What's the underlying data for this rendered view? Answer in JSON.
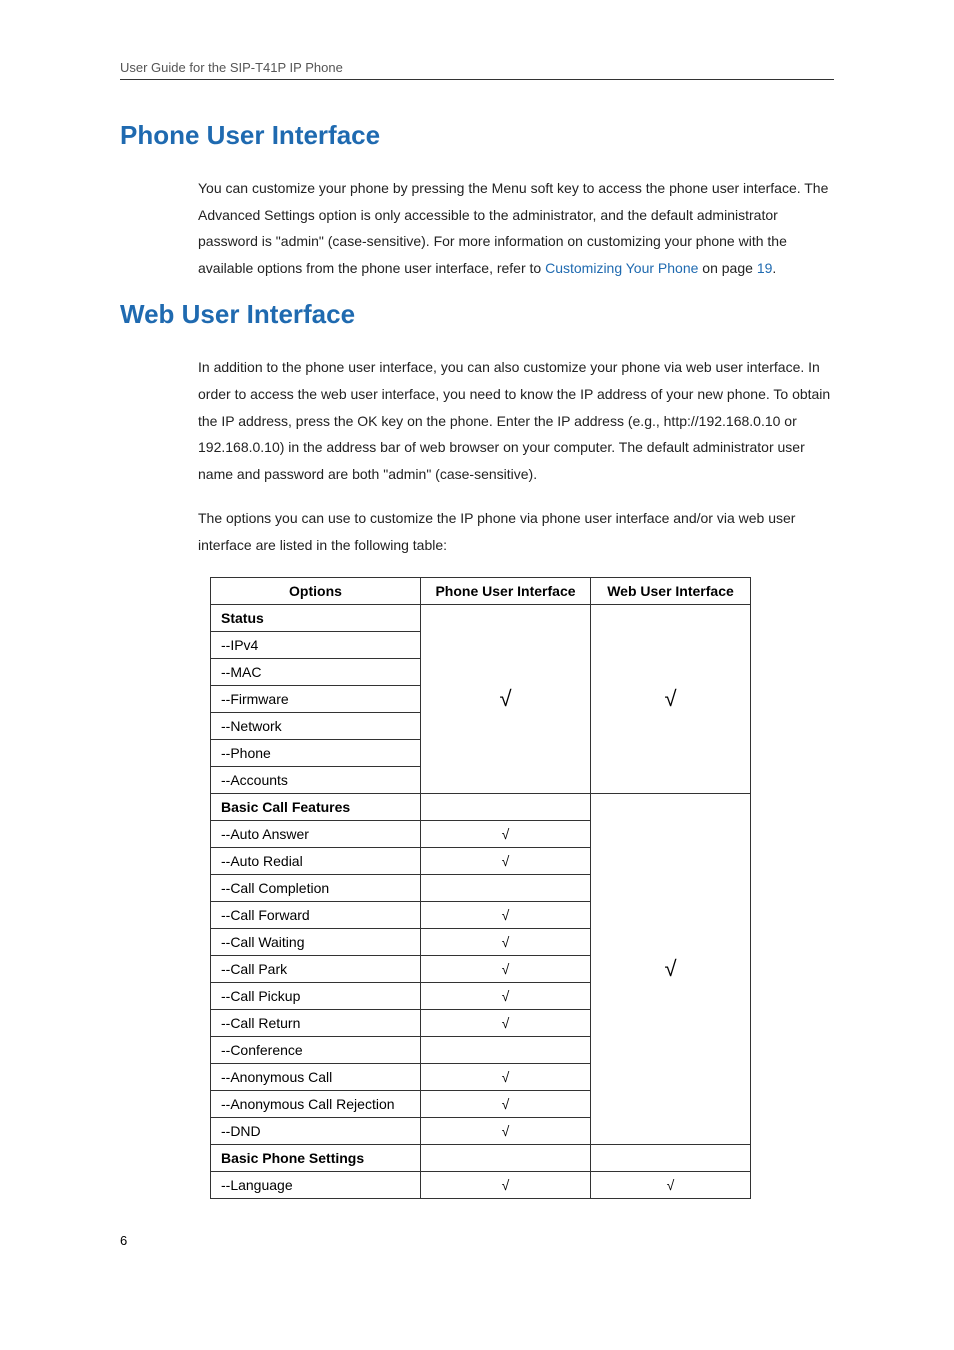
{
  "header": "User Guide for the SIP-T41P IP Phone",
  "section1": {
    "title": "Phone User Interface",
    "paragraph_a": "You can customize your phone by pressing the Menu soft key to access the phone user interface. The Advanced Settings option is only accessible to the administrator, and the default administrator password is \"admin\" (case-sensitive). For more information on customizing your phone with the available options from the phone user interface, refer to ",
    "link_text": "Customizing Your Phone",
    "paragraph_b": " on page ",
    "page_ref": "19",
    "paragraph_c": "."
  },
  "section2": {
    "title": "Web User Interface",
    "para1": "In addition to the phone user interface, you can also customize your phone via web user interface. In order to access the web user interface, you need to know the IP address of your new phone. To obtain the IP address, press the OK key on the phone. Enter the IP address (e.g., http://192.168.0.10 or 192.168.0.10) in the address bar of web browser on your computer. The default administrator user name and password are both \"admin\" (case-sensitive).",
    "para2": "The options you can use to customize the IP phone via phone user interface and/or via web user interface are listed in the following table:"
  },
  "table": {
    "headers": {
      "c1": "Options",
      "c2": "Phone User Interface",
      "c3": "Web User Interface"
    },
    "status_group": {
      "title": "Status",
      "rows": [
        "--IPv4",
        "--MAC",
        "--Firmware",
        "--Network",
        "--Phone",
        "--Accounts"
      ],
      "phone_check": "√",
      "web_check": "√"
    },
    "basic_call": {
      "title": "Basic Call Features",
      "rows": [
        {
          "label": "--Auto Answer",
          "p": "√"
        },
        {
          "label": "--Auto Redial",
          "p": "√"
        },
        {
          "label": "--Call Completion",
          "p": ""
        },
        {
          "label": "--Call Forward",
          "p": "√"
        },
        {
          "label": "--Call Waiting",
          "p": "√"
        },
        {
          "label": "--Call Park",
          "p": "√"
        },
        {
          "label": "--Call Pickup",
          "p": "√"
        },
        {
          "label": "--Call Return",
          "p": "√"
        },
        {
          "label": "--Conference",
          "p": ""
        },
        {
          "label": "--Anonymous Call",
          "p": "√"
        },
        {
          "label": "--Anonymous Call Rejection",
          "p": "√"
        },
        {
          "label": "--DND",
          "p": "√"
        }
      ],
      "web_check": "√"
    },
    "basic_phone": {
      "title": "Basic Phone Settings",
      "rows": [
        {
          "label": "--Language",
          "p": "√",
          "w": "√"
        }
      ]
    }
  },
  "page_number": "6"
}
